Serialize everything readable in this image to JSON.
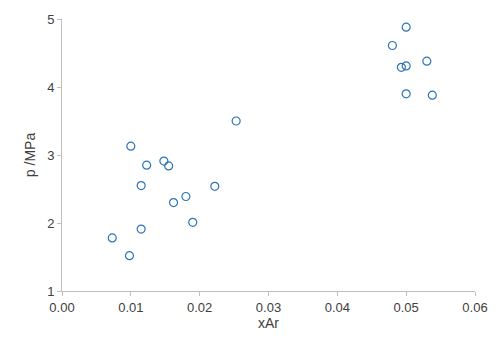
{
  "chart_data": {
    "type": "scatter",
    "x_label": "xAr",
    "y_label": "p /MPa",
    "x": [
      0.0073,
      0.0098,
      0.01,
      0.0115,
      0.0115,
      0.0123,
      0.0148,
      0.0155,
      0.0162,
      0.018,
      0.019,
      0.0222,
      0.0253,
      0.048,
      0.0493,
      0.05,
      0.05,
      0.05,
      0.053,
      0.0538
    ],
    "values": [
      1.78,
      1.52,
      3.13,
      2.55,
      1.91,
      2.85,
      2.91,
      2.84,
      2.3,
      2.39,
      2.01,
      2.54,
      3.5,
      4.61,
      4.29,
      4.88,
      4.31,
      3.9,
      4.38,
      3.88
    ],
    "color": "#2e75b6",
    "marker": "circle-open",
    "xlim": [
      0,
      0.06
    ],
    "xticks": [
      {
        "value": 0,
        "label": "0.00"
      },
      {
        "value": 0.01,
        "label": "0.01"
      },
      {
        "value": 0.02,
        "label": "0.02"
      },
      {
        "value": 0.03,
        "label": "0.03"
      },
      {
        "value": 0.04,
        "label": "0.04"
      },
      {
        "value": 0.05,
        "label": "0.05"
      },
      {
        "value": 0.06,
        "label": "0.06"
      }
    ],
    "ylim": [
      1,
      5
    ],
    "yticks": [
      1,
      2,
      3,
      4,
      5
    ],
    "grid": false
  }
}
